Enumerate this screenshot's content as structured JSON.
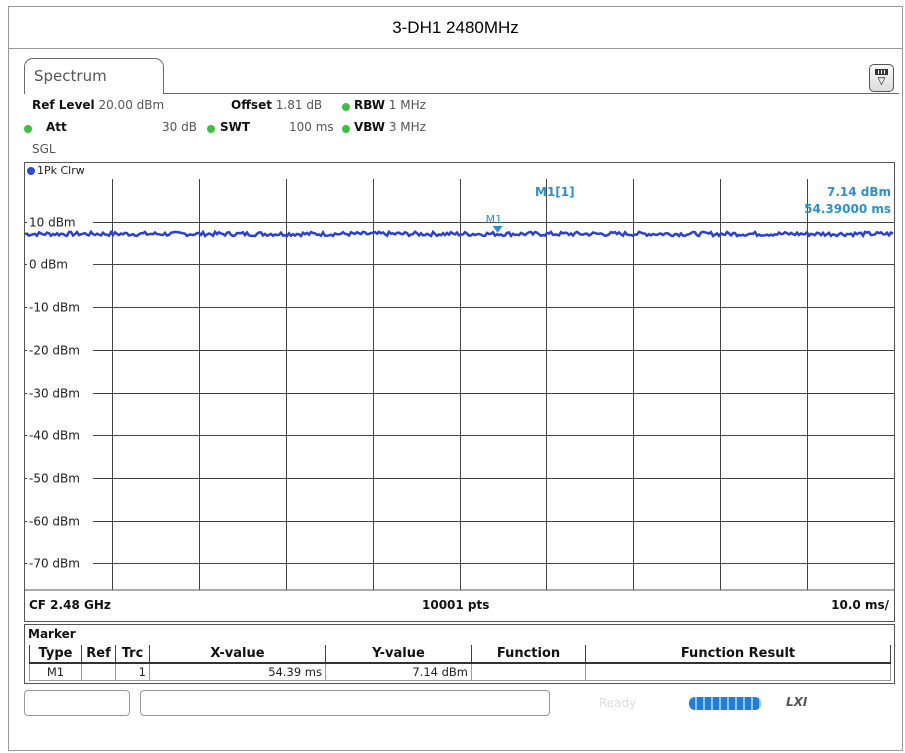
{
  "page": {
    "title": "3-DH1 2480MHz"
  },
  "analyzer": {
    "tab_label": "Spectrum",
    "settings": {
      "ref_level_label": "Ref Level",
      "ref_level_value": "20.00 dBm",
      "offset_label": "Offset",
      "offset_value": "1.81 dB",
      "rbw_label": "RBW",
      "rbw_value": "1 MHz",
      "att_label": "Att",
      "att_value": "30 dB",
      "swt_label": "SWT",
      "swt_value": "100 ms",
      "vbw_label": "VBW",
      "vbw_value": "3 MHz",
      "mode": "SGL"
    },
    "trace_label": "1Pk Clrw",
    "marker_readout": {
      "name": "M1[1]",
      "level": "7.14 dBm",
      "time": "54.39000 ms"
    },
    "marker_flag": "M1",
    "footer": {
      "center_freq": "CF 2.48 GHz",
      "points": "10001 pts",
      "scale": "10.0 ms/"
    },
    "status": {
      "ready": "Ready",
      "lxi": "LXI"
    }
  },
  "chart_data": {
    "type": "line",
    "title": "",
    "xlabel": "",
    "ylabel": "",
    "x_unit": "ms",
    "xlim": [
      0,
      100
    ],
    "ylim": [
      -80,
      20
    ],
    "y_tick_labels": [
      "10 dBm",
      "0 dBm",
      "-10 dBm",
      "-20 dBm",
      "-30 dBm",
      "-40 dBm",
      "-50 dBm",
      "-60 dBm",
      "-70 dBm"
    ],
    "y_tick_values": [
      10,
      0,
      -10,
      -20,
      -30,
      -40,
      -50,
      -60,
      -70
    ],
    "grid": true,
    "trace_color": "#2a3fd6",
    "series": [
      {
        "values_description_level_dbm": 7.14,
        "x": [
          0,
          100
        ],
        "y": [
          7.14,
          7.14
        ]
      }
    ],
    "markers": [
      {
        "x": 54.39,
        "y": 7.14,
        "label": "M1"
      }
    ]
  },
  "marker_table": {
    "title": "Marker",
    "columns": [
      "Type",
      "Ref",
      "Trc",
      "X-value",
      "Y-value",
      "Function",
      "Function Result"
    ],
    "rows": [
      {
        "type": "M1",
        "ref": "",
        "trc": "1",
        "x": "54.39 ms",
        "y": "7.14 dBm",
        "function": "",
        "result": ""
      }
    ]
  }
}
